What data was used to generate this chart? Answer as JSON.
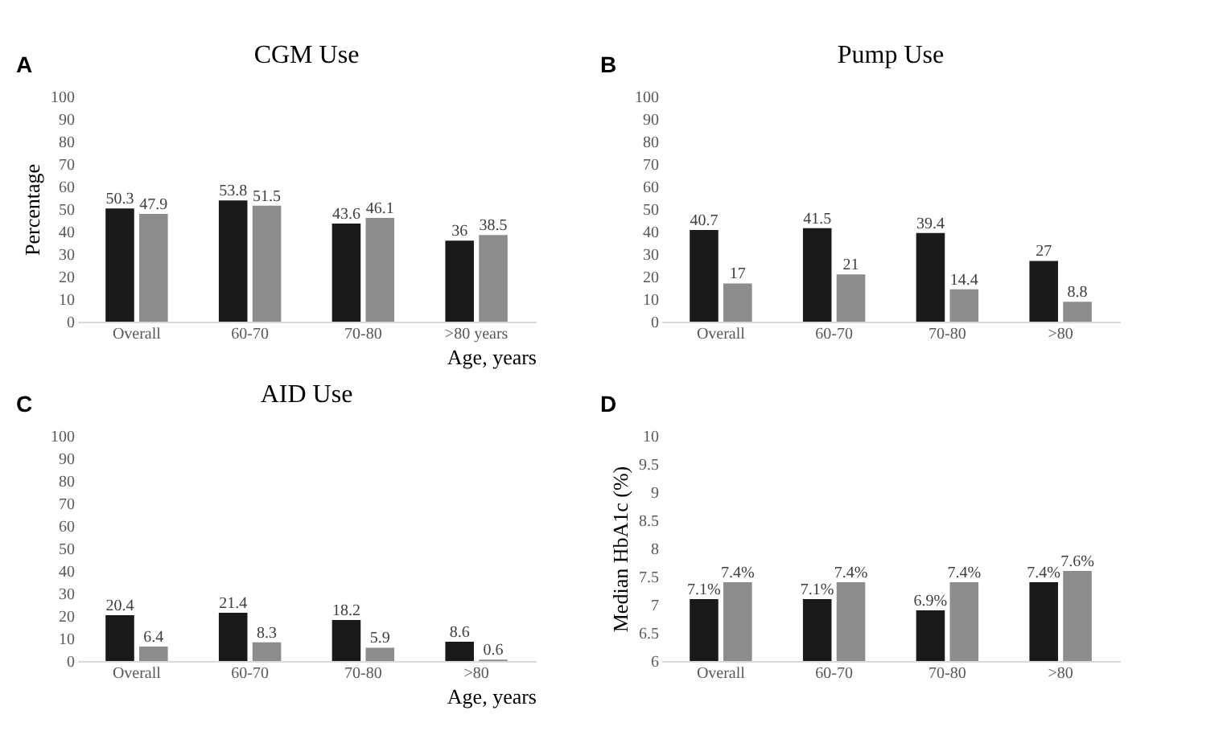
{
  "chart_data": [
    {
      "type": "bar",
      "title": "CGM Use",
      "ylabel": "Percentage",
      "xlabel": "Age, years",
      "annotations": [
        "A"
      ],
      "categories": [
        "Overall",
        "60-70",
        "70-80",
        ">80 years"
      ],
      "series": [
        {
          "color": "#1a1a1a",
          "values": [
            50.3,
            53.8,
            43.6,
            36
          ]
        },
        {
          "color": "#8c8c8c",
          "values": [
            47.9,
            51.5,
            46.1,
            38.5
          ]
        }
      ],
      "ylim": [
        0,
        100
      ],
      "yticks": [
        0,
        10,
        20,
        30,
        40,
        50,
        60,
        70,
        80,
        90,
        100
      ],
      "grid": false,
      "data_labels": true
    },
    {
      "type": "bar",
      "title": "Pump Use",
      "annotations": [
        "B"
      ],
      "categories": [
        "Overall",
        "60-70",
        "70-80",
        ">80"
      ],
      "series": [
        {
          "color": "#1a1a1a",
          "values": [
            40.7,
            41.5,
            39.4,
            27
          ]
        },
        {
          "color": "#8c8c8c",
          "values": [
            17,
            21,
            14.4,
            8.8
          ]
        }
      ],
      "ylim": [
        0,
        100
      ],
      "yticks": [
        0,
        10,
        20,
        30,
        40,
        50,
        60,
        70,
        80,
        90,
        100
      ],
      "grid": false,
      "data_labels": true
    },
    {
      "type": "bar",
      "title": "AID Use",
      "xlabel": "Age, years",
      "annotations": [
        "C"
      ],
      "categories": [
        "Overall",
        "60-70",
        "70-80",
        ">80"
      ],
      "series": [
        {
          "color": "#1a1a1a",
          "values": [
            20.4,
            21.4,
            18.2,
            8.6
          ]
        },
        {
          "color": "#8c8c8c",
          "values": [
            6.4,
            8.3,
            5.9,
            0.6
          ]
        }
      ],
      "ylim": [
        0,
        100
      ],
      "yticks": [
        0,
        10,
        20,
        30,
        40,
        50,
        60,
        70,
        80,
        90,
        100
      ],
      "grid": false,
      "data_labels": true
    },
    {
      "type": "bar",
      "ylabel": "Median HbA1c (%)",
      "annotations": [
        "D"
      ],
      "categories": [
        "Overall",
        "60-70",
        "70-80",
        ">80"
      ],
      "series": [
        {
          "color": "#1a1a1a",
          "values": [
            7.1,
            7.1,
            6.9,
            7.4
          ],
          "value_labels": [
            "7.1%",
            "7.1%",
            "6.9%",
            "7.4%"
          ]
        },
        {
          "color": "#8c8c8c",
          "values": [
            7.4,
            7.4,
            7.4,
            7.6
          ],
          "value_labels": [
            "7.4%",
            "7.4%",
            "7.4%",
            "7.6%"
          ]
        }
      ],
      "ylim": [
        6,
        10
      ],
      "yticks": [
        6,
        6.5,
        7,
        7.5,
        8,
        8.5,
        9,
        9.5,
        10
      ],
      "grid": false
    }
  ]
}
